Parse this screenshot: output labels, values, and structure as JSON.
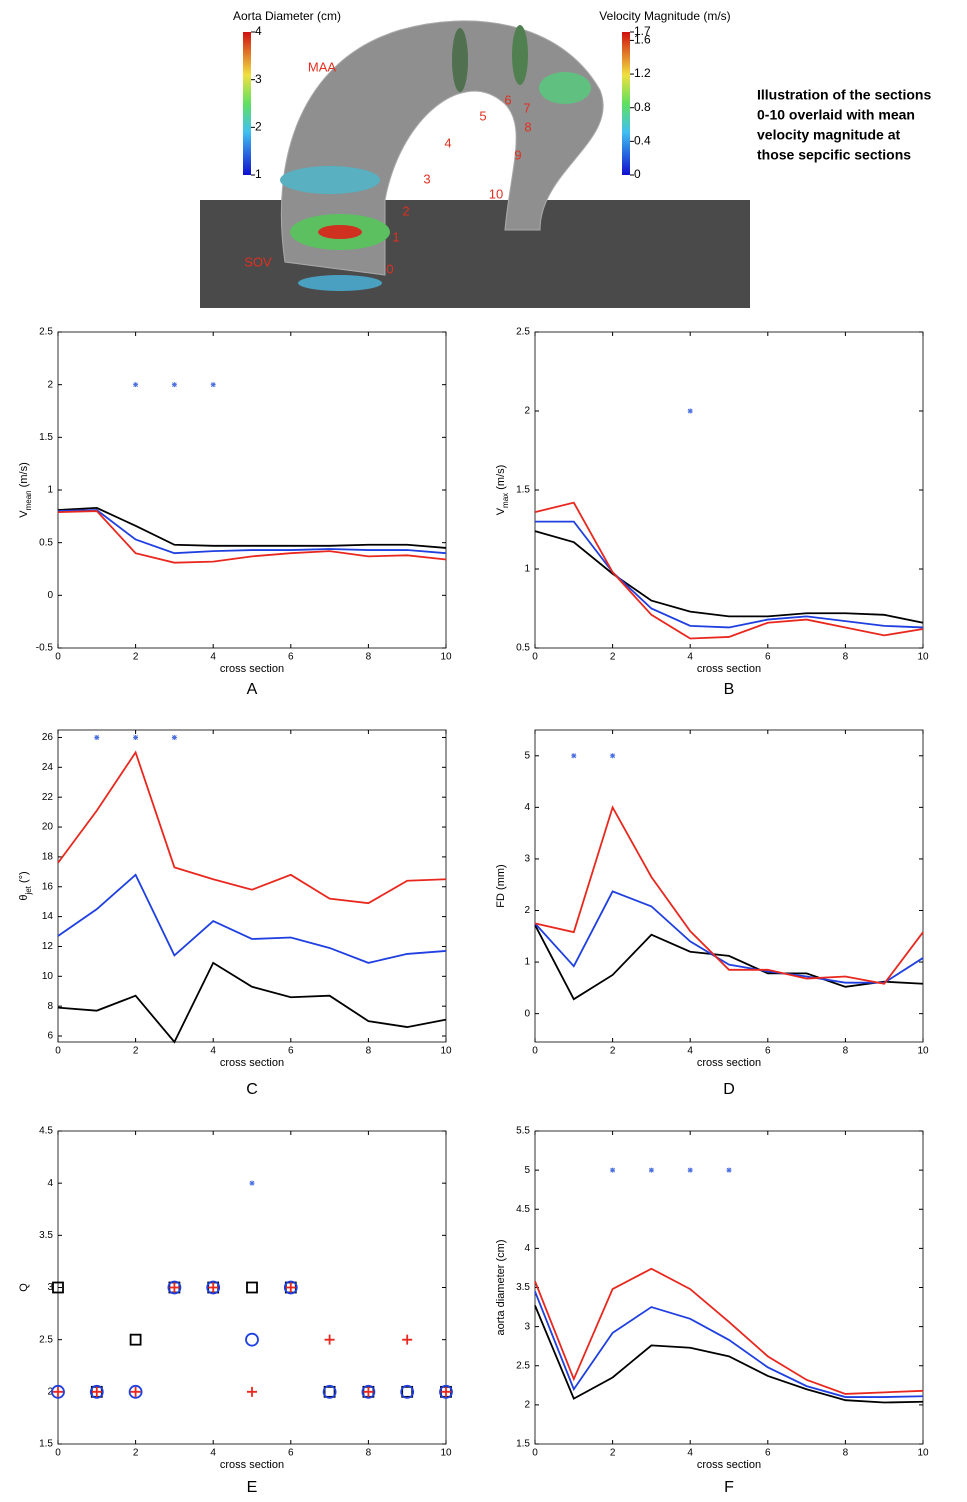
{
  "illustration": {
    "diameter_colorbar": {
      "title": "Aorta Diameter (cm)",
      "lim": [
        1,
        4
      ],
      "ticks": [
        1,
        2,
        3,
        4
      ]
    },
    "velocity_colorbar": {
      "title": "Velocity Magnitude (m/s)",
      "lim": [
        0,
        1.7
      ],
      "ticks": [
        0,
        0.4,
        0.8,
        1.2,
        1.6,
        1.7
      ]
    },
    "labels": [
      "MAA",
      "SOV"
    ],
    "section_labels": [
      "0",
      "1",
      "2",
      "3",
      "4",
      "5",
      "6",
      "7",
      "8",
      "9",
      "10"
    ],
    "caption": [
      "Illustration of the sections",
      "0-10 overlaid with mean",
      "velocity magnitude at",
      "those sepcific sections"
    ]
  },
  "chart_data": [
    {
      "type": "line",
      "panel": "A",
      "xlabel": "cross section",
      "ylabel": {
        "main": "V",
        "sub": "mean",
        "unit": " (m/s)"
      },
      "x": [
        0,
        1,
        2,
        3,
        4,
        5,
        6,
        7,
        8,
        9,
        10
      ],
      "xlim": [
        0,
        10
      ],
      "xticks": [
        0,
        2,
        4,
        6,
        8,
        10
      ],
      "ylim": [
        -0.5,
        2.5
      ],
      "yticks": [
        -0.5,
        0,
        0.5,
        1,
        1.5,
        2,
        2.5
      ],
      "series": [
        {
          "color": "#000000",
          "values": [
            0.81,
            0.83,
            0.66,
            0.48,
            0.47,
            0.47,
            0.47,
            0.47,
            0.48,
            0.48,
            0.45
          ]
        },
        {
          "color": "#1f3fe0",
          "values": [
            0.8,
            0.81,
            0.53,
            0.4,
            0.42,
            0.43,
            0.43,
            0.44,
            0.43,
            0.43,
            0.4
          ]
        },
        {
          "color": "#e8281e",
          "values": [
            0.79,
            0.8,
            0.4,
            0.31,
            0.32,
            0.37,
            0.4,
            0.42,
            0.37,
            0.38,
            0.34
          ]
        }
      ],
      "significance": {
        "color": "#4a6fe0",
        "x": [
          2,
          3,
          4
        ],
        "y": [
          2,
          2,
          2
        ]
      }
    },
    {
      "type": "line",
      "panel": "B",
      "xlabel": "cross section",
      "ylabel": {
        "main": "V",
        "sub": "max",
        "unit": " (m/s)"
      },
      "x": [
        0,
        1,
        2,
        3,
        4,
        5,
        6,
        7,
        8,
        9,
        10
      ],
      "xlim": [
        0,
        10
      ],
      "xticks": [
        0,
        2,
        4,
        6,
        8,
        10
      ],
      "ylim": [
        0.5,
        2.5
      ],
      "yticks": [
        0.5,
        1,
        1.5,
        2,
        2.5
      ],
      "series": [
        {
          "color": "#000000",
          "values": [
            1.24,
            1.17,
            0.97,
            0.8,
            0.73,
            0.7,
            0.7,
            0.72,
            0.72,
            0.71,
            0.66
          ]
        },
        {
          "color": "#1f3fe0",
          "values": [
            1.3,
            1.3,
            0.98,
            0.75,
            0.64,
            0.63,
            0.68,
            0.7,
            0.67,
            0.64,
            0.63
          ]
        },
        {
          "color": "#e8281e",
          "values": [
            1.36,
            1.42,
            0.98,
            0.71,
            0.56,
            0.57,
            0.66,
            0.68,
            0.63,
            0.58,
            0.62
          ]
        }
      ],
      "significance": {
        "color": "#4a6fe0",
        "x": [
          4
        ],
        "y": [
          2
        ]
      }
    },
    {
      "type": "line",
      "panel": "C",
      "xlabel": "cross section",
      "ylabel": {
        "main": "θ",
        "sub": "jet",
        "unit": " (°)"
      },
      "x": [
        0,
        1,
        2,
        3,
        4,
        5,
        6,
        7,
        8,
        9,
        10
      ],
      "xlim": [
        0,
        10
      ],
      "xticks": [
        0,
        2,
        4,
        6,
        8,
        10
      ],
      "ylim": [
        5.6,
        26.5
      ],
      "yticks": [
        6,
        8,
        10,
        12,
        14,
        16,
        18,
        20,
        22,
        24,
        26
      ],
      "series": [
        {
          "color": "#000000",
          "values": [
            7.9,
            7.7,
            8.7,
            5.6,
            10.9,
            9.3,
            8.6,
            8.7,
            7.0,
            6.6,
            7.1
          ]
        },
        {
          "color": "#1f3fe0",
          "values": [
            12.7,
            14.5,
            16.8,
            11.4,
            13.7,
            12.5,
            12.6,
            11.9,
            10.9,
            11.5,
            11.7
          ]
        },
        {
          "color": "#e8281e",
          "values": [
            17.6,
            21.1,
            25.0,
            17.3,
            16.5,
            15.8,
            16.8,
            15.2,
            14.9,
            16.4,
            16.5
          ]
        }
      ],
      "significance": {
        "color": "#4a6fe0",
        "x": [
          1,
          2,
          3
        ],
        "y": [
          26,
          26,
          26
        ]
      }
    },
    {
      "type": "line",
      "panel": "D",
      "xlabel": "cross section",
      "ylabel": {
        "main": "FD (mm)"
      },
      "x": [
        0,
        1,
        2,
        3,
        4,
        5,
        6,
        7,
        8,
        9,
        10
      ],
      "xlim": [
        0,
        10
      ],
      "xticks": [
        0,
        2,
        4,
        6,
        8,
        10
      ],
      "ylim": [
        -0.55,
        5.5
      ],
      "yticks": [
        0,
        1,
        2,
        3,
        4,
        5
      ],
      "series": [
        {
          "color": "#000000",
          "values": [
            1.72,
            0.28,
            0.75,
            1.53,
            1.2,
            1.12,
            0.78,
            0.78,
            0.52,
            0.62,
            0.58
          ]
        },
        {
          "color": "#1f3fe0",
          "values": [
            1.75,
            0.92,
            2.37,
            2.08,
            1.4,
            0.95,
            0.82,
            0.72,
            0.6,
            0.6,
            1.08
          ]
        },
        {
          "color": "#e8281e",
          "values": [
            1.75,
            1.58,
            4.0,
            2.65,
            1.6,
            0.85,
            0.85,
            0.68,
            0.72,
            0.58,
            1.58
          ]
        }
      ],
      "significance": {
        "color": "#4a6fe0",
        "x": [
          1,
          2
        ],
        "y": [
          5,
          5
        ]
      }
    },
    {
      "type": "scatter",
      "panel": "E",
      "xlabel": "cross section",
      "ylabel": {
        "main": "Q"
      },
      "x": [
        0,
        1,
        2,
        3,
        4,
        5,
        6,
        7,
        8,
        9,
        10
      ],
      "xlim": [
        0,
        10
      ],
      "xticks": [
        0,
        2,
        4,
        6,
        8,
        10
      ],
      "ylim": [
        1.5,
        4.5
      ],
      "yticks": [
        1.5,
        2,
        2.5,
        3,
        3.5,
        4,
        4.5
      ],
      "series": [
        {
          "color": "#000000",
          "marker": "square",
          "values": [
            3,
            2,
            2.5,
            3,
            3,
            3,
            3,
            2,
            2,
            2,
            2
          ]
        },
        {
          "color": "#1f3fe0",
          "marker": "circle",
          "values": [
            2,
            2,
            2,
            3,
            3,
            2.5,
            3,
            2,
            2,
            2,
            2
          ]
        },
        {
          "color": "#e8281e",
          "marker": "plus",
          "values": [
            2,
            2,
            2,
            3,
            3,
            2,
            3,
            2.5,
            2,
            2.5,
            2
          ]
        }
      ],
      "significance": {
        "color": "#4a6fe0",
        "x": [
          5
        ],
        "y": [
          4
        ]
      }
    },
    {
      "type": "line",
      "panel": "F",
      "xlabel": "cross section",
      "ylabel": {
        "main": "aorta diameter (cm)"
      },
      "x": [
        0,
        1,
        2,
        3,
        4,
        5,
        6,
        7,
        8,
        9,
        10
      ],
      "xlim": [
        0,
        10
      ],
      "xticks": [
        0,
        2,
        4,
        6,
        8,
        10
      ],
      "ylim": [
        1.5,
        5.5
      ],
      "yticks": [
        1.5,
        2,
        2.5,
        3,
        3.5,
        4,
        4.5,
        5,
        5.5
      ],
      "series": [
        {
          "color": "#000000",
          "values": [
            3.27,
            2.08,
            2.35,
            2.76,
            2.73,
            2.62,
            2.37,
            2.2,
            2.06,
            2.03,
            2.04
          ]
        },
        {
          "color": "#1f3fe0",
          "values": [
            3.45,
            2.2,
            2.92,
            3.25,
            3.1,
            2.83,
            2.48,
            2.24,
            2.1,
            2.1,
            2.11
          ]
        },
        {
          "color": "#e8281e",
          "values": [
            3.58,
            2.33,
            3.48,
            3.74,
            3.48,
            3.06,
            2.62,
            2.32,
            2.14,
            2.16,
            2.18
          ]
        }
      ],
      "significance": {
        "color": "#4a6fe0",
        "x": [
          2,
          3,
          4,
          5
        ],
        "y": [
          5,
          5,
          5,
          5
        ]
      }
    }
  ]
}
